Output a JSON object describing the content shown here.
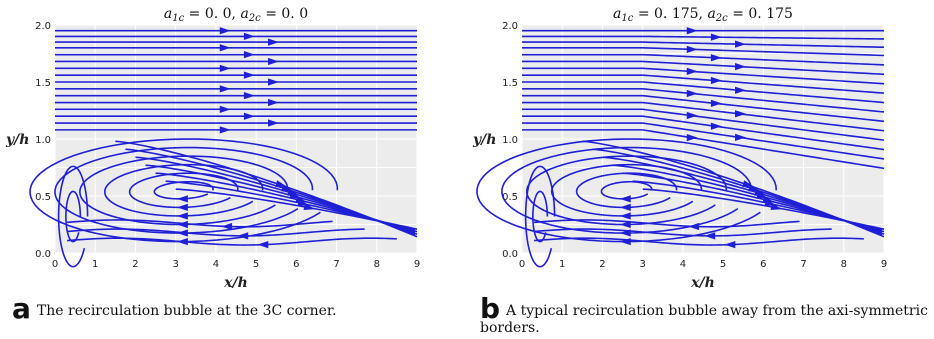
{
  "panels": [
    {
      "id": "a",
      "title": "a₁c = 0.0,  a₂c = 0.0",
      "title_parts": {
        "a1": "a",
        "a1sub": "1c",
        "a1val": " = 0. 0,  ",
        "a2": "a",
        "a2sub": "2c",
        "a2val": " = 0. 0"
      },
      "caption_letter": "a",
      "caption_text": "The recirculation bubble at the 3C corner.",
      "bubble_center": [
        3.2,
        0.55
      ]
    },
    {
      "id": "b",
      "title": "a₁c = 0.175,  a₂c = 0.175",
      "title_parts": {
        "a1": "a",
        "a1sub": "1c",
        "a1val": " = 0. 175,  ",
        "a2": "a",
        "a2sub": "2c",
        "a2val": " = 0. 175"
      },
      "caption_letter": "b",
      "caption_text": "A typical recirculation bubble away from the axi-symmetric borders.",
      "bubble_center": [
        2.6,
        0.55
      ]
    }
  ],
  "axes": {
    "xlabel": "x/h",
    "ylabel": "y/h",
    "xticks": [
      "0",
      "1",
      "2",
      "3",
      "4",
      "5",
      "6",
      "7",
      "8",
      "9"
    ],
    "yticks": [
      "0.0",
      "0.5",
      "1.0",
      "1.5",
      "2.0"
    ],
    "xlim": [
      0,
      9
    ],
    "ylim": [
      0,
      2
    ],
    "grid": true
  },
  "colors": {
    "streamline": "#1f1fd6",
    "background": "#ececec",
    "grid": "#ffffff"
  }
}
